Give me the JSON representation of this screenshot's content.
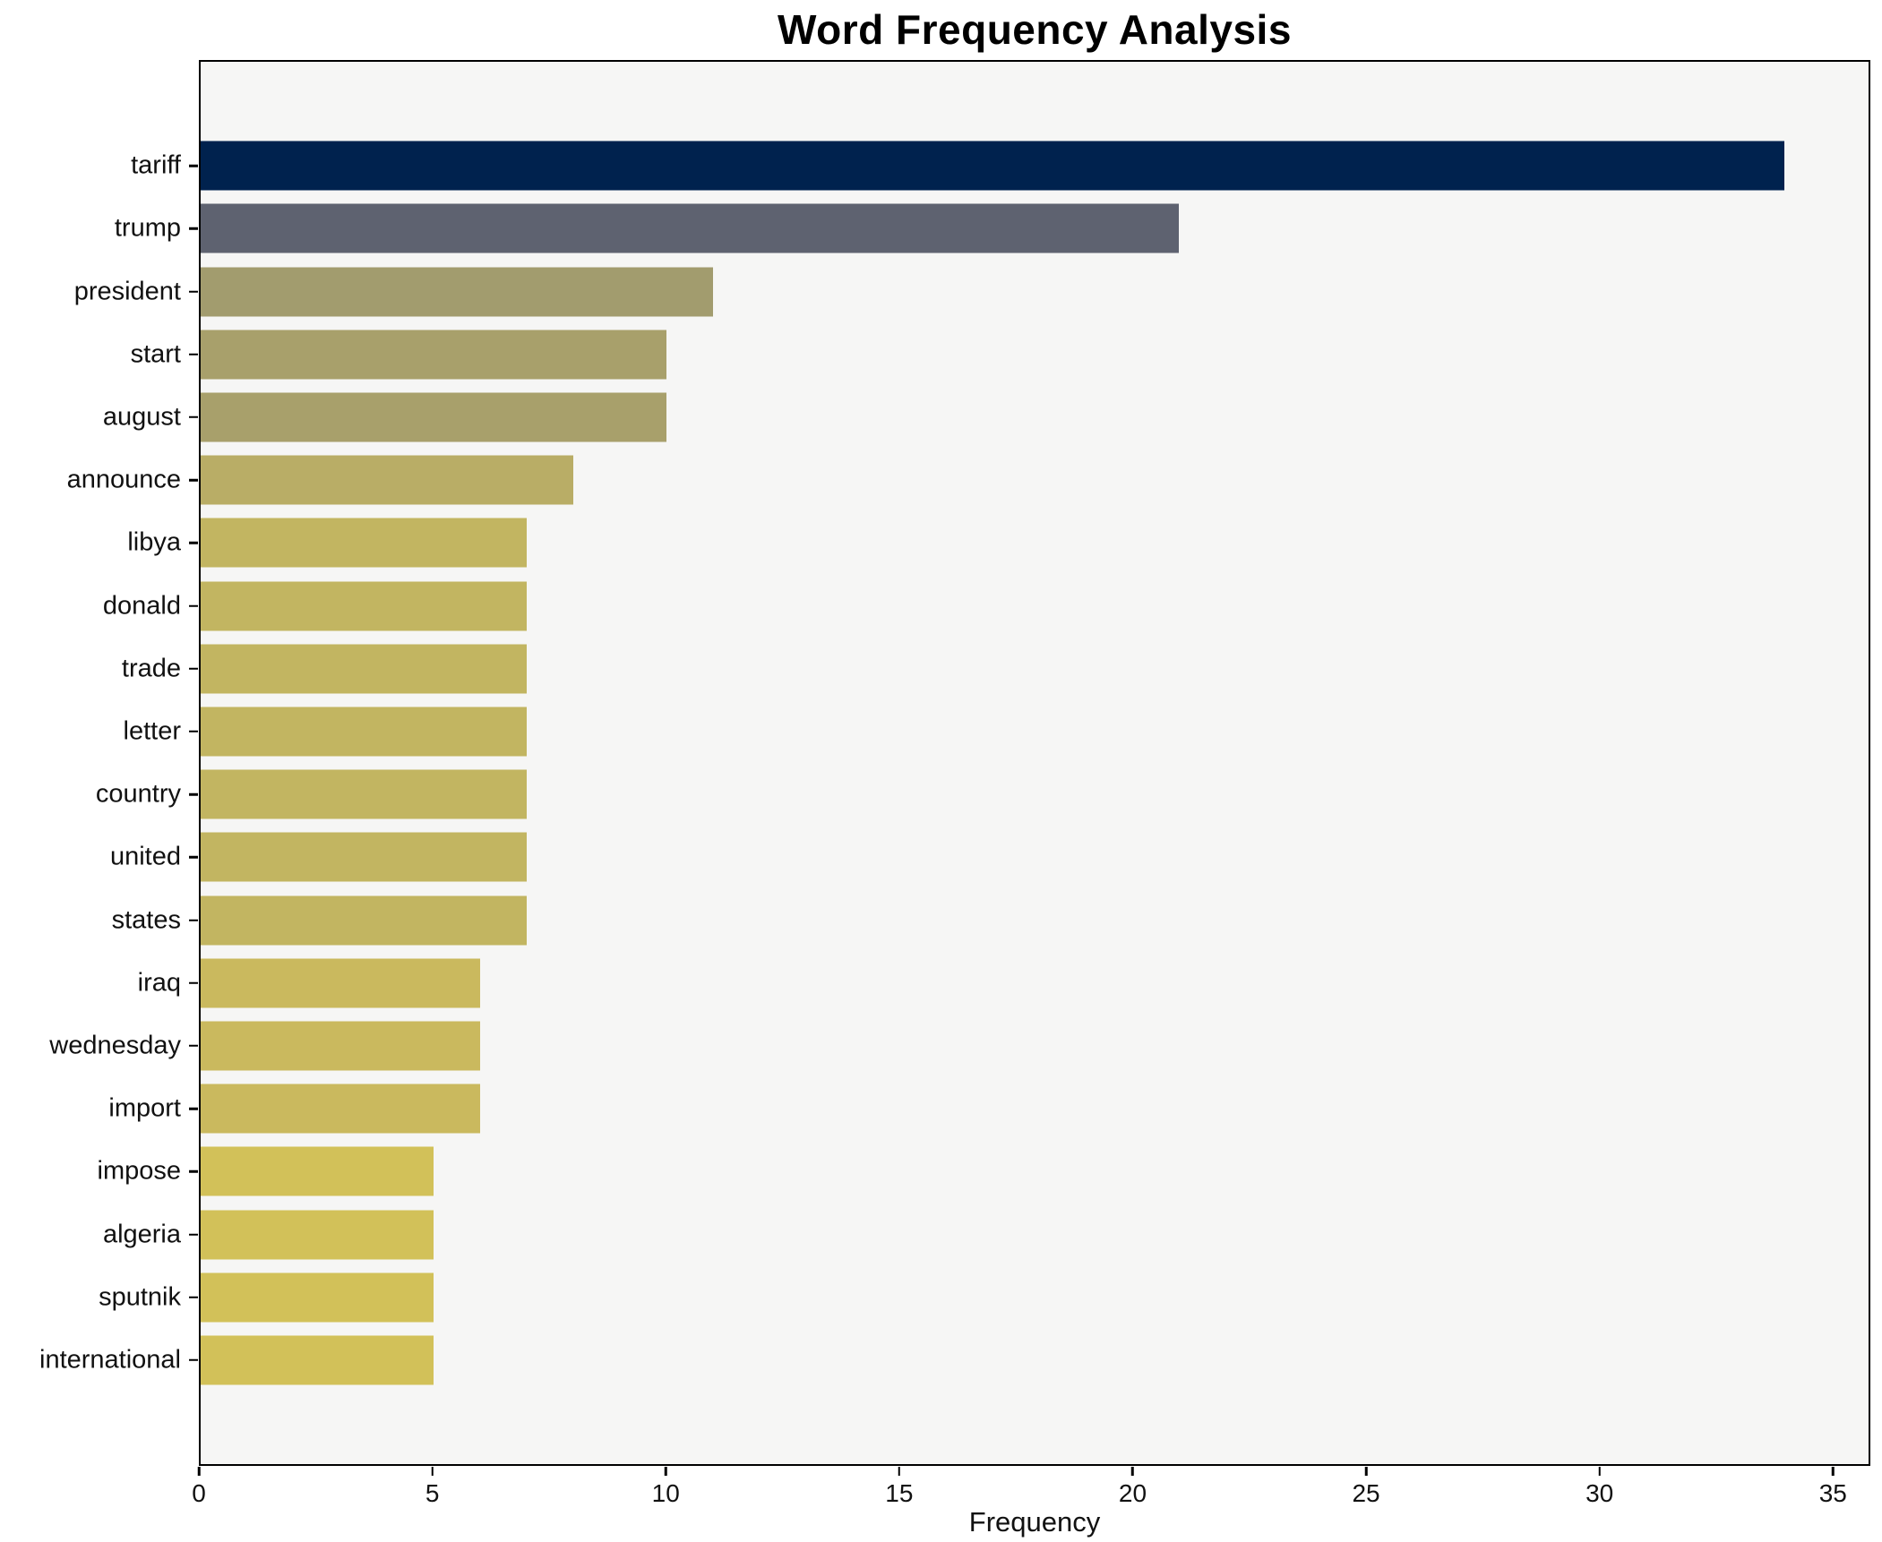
{
  "chart_data": {
    "type": "bar",
    "orientation": "horizontal",
    "title": "Word Frequency Analysis",
    "xlabel": "Frequency",
    "ylabel": "",
    "xlim": [
      0,
      35.8
    ],
    "xticks": [
      0,
      5,
      10,
      15,
      20,
      25,
      30,
      35
    ],
    "grid": false,
    "legend": "none",
    "plot_background": "#f6f6f5",
    "spine_color": "#000000",
    "categories": [
      "tariff",
      "trump",
      "president",
      "start",
      "august",
      "announce",
      "libya",
      "donald",
      "trade",
      "letter",
      "country",
      "united",
      "states",
      "iraq",
      "wednesday",
      "import",
      "impose",
      "algeria",
      "sputnik",
      "international"
    ],
    "values": [
      34,
      21,
      11,
      10,
      10,
      8,
      7,
      7,
      7,
      7,
      7,
      7,
      7,
      6,
      6,
      6,
      5,
      5,
      5,
      5
    ],
    "bar_colors": [
      "#00224e",
      "#5e6270",
      "#a29c6e",
      "#a8a06b",
      "#a8a06b",
      "#b9ad66",
      "#c2b561",
      "#c2b561",
      "#c2b561",
      "#c2b561",
      "#c2b561",
      "#c2b561",
      "#c2b561",
      "#cab95e",
      "#cab95e",
      "#cab95e",
      "#d2c159",
      "#d2c159",
      "#d2c159",
      "#d2c159"
    ]
  }
}
